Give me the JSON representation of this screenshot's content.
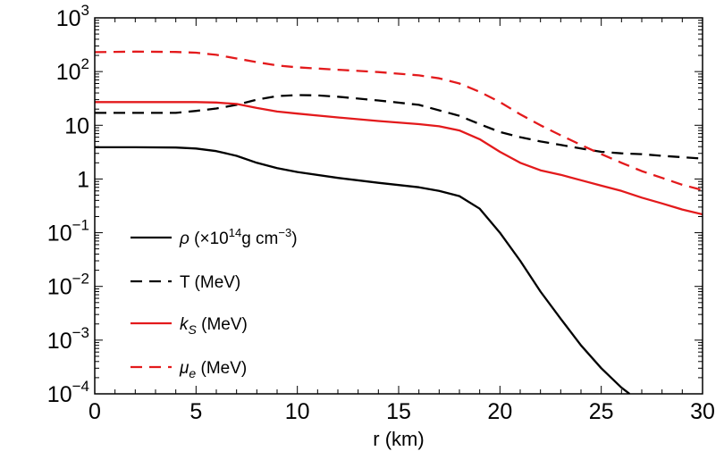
{
  "chart_data": {
    "type": "line",
    "title": "",
    "xlabel": "r (km)",
    "ylabel": "",
    "yscale": "log",
    "xlim": [
      0,
      30
    ],
    "ylim": [
      0.0001,
      1000
    ],
    "grid": false,
    "legend_position": "left-center",
    "x_ticks": [
      {
        "value": 0,
        "label": "0"
      },
      {
        "value": 5,
        "label": "5"
      },
      {
        "value": 10,
        "label": "10"
      },
      {
        "value": 15,
        "label": "15"
      },
      {
        "value": 20,
        "label": "20"
      },
      {
        "value": 25,
        "label": "25"
      },
      {
        "value": 30,
        "label": "30"
      }
    ],
    "y_ticks": [
      {
        "value": 1000,
        "label": "10",
        "exp": "3"
      },
      {
        "value": 100,
        "label": "10",
        "exp": "2"
      },
      {
        "value": 10,
        "label": "10",
        "exp": ""
      },
      {
        "value": 1,
        "label": "1",
        "exp": ""
      },
      {
        "value": 0.1,
        "label": "10",
        "exp": "−1"
      },
      {
        "value": 0.01,
        "label": "10",
        "exp": "−2"
      },
      {
        "value": 0.001,
        "label": "10",
        "exp": "−3"
      },
      {
        "value": 0.0001,
        "label": "10",
        "exp": "−4"
      }
    ],
    "series": [
      {
        "name": "rho",
        "legend": {
          "symbol": "ρ",
          "pre": " (×10",
          "sup": "14",
          "post": "g cm",
          "sup2": "−3",
          "tail": ")"
        },
        "color": "#000000",
        "dash": "solid",
        "x": [
          0,
          2,
          4,
          5,
          6,
          7,
          8,
          9,
          10,
          12,
          14,
          16,
          17,
          18,
          19,
          20,
          21,
          22,
          23,
          24,
          25,
          26,
          26.4
        ],
        "y": [
          3.9,
          3.9,
          3.85,
          3.7,
          3.3,
          2.7,
          2.0,
          1.6,
          1.35,
          1.05,
          0.85,
          0.7,
          0.6,
          0.48,
          0.28,
          0.1,
          0.03,
          0.008,
          0.0025,
          0.0008,
          0.0003,
          0.00013,
          0.0001
        ]
      },
      {
        "name": "T",
        "legend": {
          "symbol": "",
          "pre": "T (MeV)",
          "sup": "",
          "post": "",
          "sup2": "",
          "tail": ""
        },
        "color": "#000000",
        "dash": "dashed",
        "x": [
          0,
          2,
          4,
          5,
          6,
          7,
          8,
          9,
          10,
          11,
          12,
          14,
          16,
          18,
          19,
          20,
          21,
          22,
          23,
          24,
          25,
          26,
          27,
          28,
          29,
          30
        ],
        "y": [
          17,
          17,
          17,
          18.5,
          20.5,
          24,
          30,
          35,
          36.5,
          36,
          34,
          29,
          24,
          15,
          10.5,
          7.5,
          6,
          5,
          4.3,
          3.7,
          3.2,
          3.0,
          2.9,
          2.7,
          2.55,
          2.4
        ]
      },
      {
        "name": "kS",
        "legend": {
          "symbol": "k",
          "sub": "S",
          "pre": " (MeV)",
          "sup": "",
          "post": "",
          "sup2": "",
          "tail": ""
        },
        "color": "#e31a1c",
        "dash": "solid",
        "x": [
          0,
          2,
          4,
          5,
          6,
          7,
          8,
          9,
          10,
          12,
          14,
          16,
          17,
          18,
          19,
          20,
          21,
          22,
          23,
          24,
          25,
          26,
          27,
          28,
          29,
          30
        ],
        "y": [
          27,
          27,
          27,
          27,
          26.5,
          25,
          21,
          18,
          16.5,
          14,
          12,
          10.5,
          9.6,
          8,
          5.5,
          3.2,
          2.0,
          1.45,
          1.2,
          0.95,
          0.75,
          0.6,
          0.45,
          0.35,
          0.27,
          0.22
        ]
      },
      {
        "name": "mu_e",
        "legend": {
          "symbol": "μ",
          "sub": "e",
          "pre": " (MeV)",
          "sup": "",
          "post": "",
          "sup2": "",
          "tail": ""
        },
        "color": "#e31a1c",
        "dash": "dashed",
        "x": [
          0,
          2,
          4,
          5,
          6,
          7,
          8,
          9,
          10,
          12,
          14,
          16,
          17,
          18,
          19,
          20,
          21,
          22,
          23,
          24,
          25,
          26,
          27,
          28,
          29,
          30
        ],
        "y": [
          230,
          235,
          232,
          225,
          205,
          175,
          150,
          130,
          120,
          108,
          98,
          85,
          75,
          60,
          42,
          27,
          16,
          10,
          6.5,
          4.3,
          2.9,
          2.0,
          1.4,
          1.05,
          0.78,
          0.62
        ]
      }
    ]
  }
}
